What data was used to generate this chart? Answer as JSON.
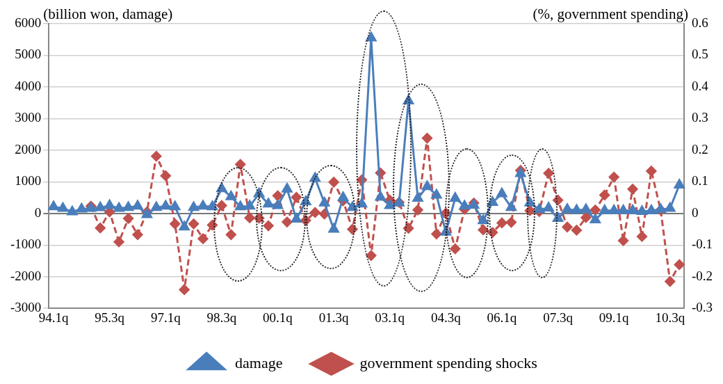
{
  "chart_data": {
    "type": "line",
    "ylabel": "(billion won, damage)",
    "y2label": "(%, government spending)",
    "categories": [
      "94.1q",
      null,
      null,
      null,
      null,
      null,
      "95.3q",
      null,
      null,
      null,
      null,
      null,
      "97.1q",
      null,
      null,
      null,
      null,
      null,
      "98.3q",
      null,
      null,
      null,
      null,
      null,
      "00.1q",
      null,
      null,
      null,
      null,
      null,
      "01.3q",
      null,
      null,
      null,
      null,
      null,
      "03.1q",
      null,
      null,
      null,
      null,
      null,
      "04.3q",
      null,
      null,
      null,
      null,
      null,
      "06.1q",
      null,
      null,
      null,
      null,
      null,
      "07.3q",
      null,
      null,
      null,
      null,
      null,
      "09.1q",
      null,
      null,
      null,
      null,
      null,
      "10.3q",
      null
    ],
    "series": [
      {
        "name": "damage",
        "color": "#4a7ebb",
        "marker": "triangle",
        "line_style": "solid",
        "values": [
          210,
          160,
          50,
          140,
          160,
          180,
          250,
          160,
          190,
          230,
          -40,
          190,
          230,
          210,
          -430,
          190,
          230,
          210,
          780,
          530,
          210,
          230,
          620,
          300,
          250,
          770,
          -180,
          370,
          1110,
          330,
          -500,
          500,
          190,
          300,
          5550,
          510,
          250,
          330,
          3560,
          480,
          850,
          580,
          -590,
          480,
          230,
          260,
          -230,
          350,
          620,
          190,
          1260,
          330,
          120,
          170,
          -160,
          130,
          100,
          120,
          -200,
          90,
          90,
          90,
          90,
          60,
          90,
          120,
          160,
          900
        ]
      },
      {
        "name": "government spending shocks",
        "color": "#c0504d",
        "marker": "diamond",
        "line_style": "dashed",
        "axis": "y2",
        "values": [
          null,
          null,
          null,
          null,
          0.023,
          -0.046,
          0.005,
          -0.09,
          -0.016,
          -0.067,
          0.005,
          0.181,
          0.119,
          -0.033,
          -0.241,
          -0.033,
          -0.08,
          -0.037,
          0.025,
          -0.067,
          0.155,
          -0.014,
          -0.015,
          -0.039,
          0.056,
          -0.027,
          0.051,
          -0.022,
          0.003,
          -0.002,
          0.099,
          0.04,
          -0.05,
          0.106,
          -0.133,
          0.128,
          0.042,
          0.035,
          -0.047,
          0.011,
          0.238,
          -0.065,
          0.001,
          -0.112,
          0.013,
          0.033,
          -0.052,
          -0.06,
          -0.03,
          -0.028,
          0.136,
          0.009,
          0.006,
          0.127,
          0.042,
          -0.043,
          -0.053,
          -0.013,
          0.011,
          0.058,
          0.115,
          -0.086,
          0.077,
          -0.073,
          0.134,
          0.011,
          -0.215,
          -0.162
        ]
      }
    ],
    "ylim": [
      -3000,
      6000
    ],
    "yticks": [
      -3000,
      -2000,
      -1000,
      0,
      1000,
      2000,
      3000,
      4000,
      5000,
      6000
    ],
    "y2lim": [
      -0.3,
      0.6
    ],
    "y2ticks": [
      -0.3,
      -0.2,
      -0.1,
      0,
      0.1,
      0.2,
      0.3,
      0.4,
      0.5,
      0.6
    ],
    "grid": "y",
    "legend": "bottom"
  }
}
